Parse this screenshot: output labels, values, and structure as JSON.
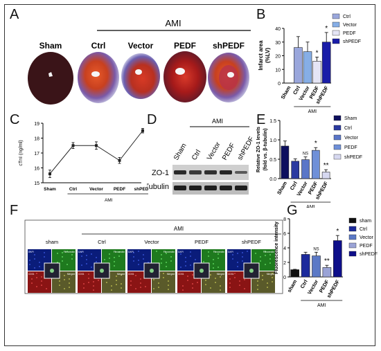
{
  "panels": {
    "A": {
      "letter": "A",
      "group": "AMI",
      "labels": [
        "Sham",
        "Ctrl",
        "Vector",
        "PEDF",
        "shPEDF"
      ]
    },
    "B": {
      "letter": "B",
      "chart_data": {
        "type": "bar",
        "ylabel": "Infarct area\n(%LV)",
        "categories": [
          "Sham",
          "Ctrl",
          "Vector",
          "PEDF",
          "shPEDF"
        ],
        "values": [
          0,
          26,
          23,
          16,
          30
        ],
        "errors": [
          0,
          8,
          7,
          3,
          7
        ],
        "ylim": [
          0,
          40
        ],
        "yticks": [
          0,
          10,
          20,
          30,
          40
        ],
        "significance": [
          "",
          "",
          "",
          "*",
          "*"
        ],
        "group": "AMI",
        "legend": [
          "Ctrl",
          "Vector",
          "PEDF",
          "shPEDF"
        ],
        "colors": [
          "#9aa7dc",
          "#86aee6",
          "#e5e5f5",
          "#1a1da8"
        ]
      }
    },
    "C": {
      "letter": "C",
      "chart_data": {
        "type": "line",
        "ylabel": "cTnI (ng/ml)",
        "categories": [
          "Sham",
          "Ctrl",
          "Vector",
          "PEDF",
          "shPEDF"
        ],
        "values": [
          15.6,
          17.5,
          17.5,
          16.5,
          18.5
        ],
        "errors": [
          0.25,
          0.2,
          0.25,
          0.2,
          0.15
        ],
        "ylim": [
          15,
          19
        ],
        "yticks": [
          15,
          16,
          17,
          18,
          19
        ],
        "group": "AMI"
      }
    },
    "D": {
      "letter": "D",
      "group": "AMI",
      "lanes": [
        "Sham",
        "Ctrl",
        "Vector",
        "PEDF",
        "shPEDF"
      ],
      "rows": [
        "ZO-1",
        "β-Tubulin"
      ]
    },
    "E": {
      "letter": "E",
      "chart_data": {
        "type": "bar",
        "ylabel": "Relative ZO-1 levels\n(fold vs. β-tubulin)",
        "categories": [
          "Sham",
          "Ctrl",
          "Vector",
          "PEDF",
          "shPEDF"
        ],
        "values": [
          0.84,
          0.45,
          0.49,
          0.73,
          0.17
        ],
        "errors": [
          0.13,
          0.06,
          0.07,
          0.07,
          0.06
        ],
        "ylim": [
          0,
          1.5
        ],
        "yticks": [
          "0.0",
          "0.5",
          "1.0",
          "1.5"
        ],
        "significance": [
          "",
          "",
          "NS",
          "*",
          "**"
        ],
        "group": "AMI",
        "legend": [
          "Sham",
          "Ctrl",
          "Vector",
          "PEDF",
          "shPEDF"
        ],
        "colors": [
          "#0d0f5e",
          "#2b3aa0",
          "#5a76c8",
          "#6f90d8",
          "#d6d8f0"
        ]
      }
    },
    "F": {
      "letter": "F",
      "group": "AMI",
      "groups": [
        "sham",
        "Ctrl",
        "Vector",
        "PEDF",
        "shPEDF"
      ],
      "quadrants": [
        "DAPI",
        "Fibronectin",
        "CD31",
        "Merged"
      ]
    },
    "G": {
      "letter": "G",
      "chart_data": {
        "type": "bar",
        "ylabel": "Fluorescence intensity",
        "categories": [
          "sham",
          "Ctrl",
          "Vector",
          "PEDF",
          "shPEDF"
        ],
        "values": [
          1.0,
          3.1,
          2.9,
          1.3,
          5.0
        ],
        "errors": [
          0.05,
          0.3,
          0.5,
          0.3,
          0.7
        ],
        "ylim": [
          0,
          8
        ],
        "yticks": [
          0,
          2,
          4,
          6,
          8
        ],
        "significance": [
          "",
          "",
          "NS",
          "**",
          "*"
        ],
        "group": "AMI",
        "legend": [
          "sham",
          "Ctrl",
          "Vector",
          "PEDF",
          "shPEDF"
        ],
        "colors": [
          "#111111",
          "#1c2a9c",
          "#5b79c6",
          "#9aa3d6",
          "#0e0f8a"
        ]
      }
    }
  }
}
